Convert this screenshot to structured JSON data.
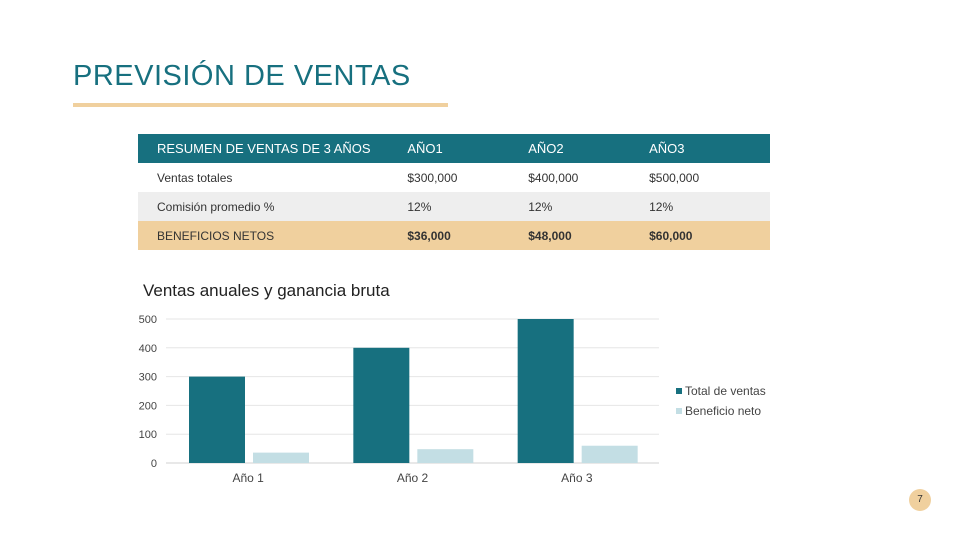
{
  "slide": {
    "title": "PREVISIÓN DE VENTAS",
    "page_number": "7",
    "colors": {
      "teal": "#17707f",
      "light_blue": "#c3dee4",
      "accent": "#f0d09e"
    }
  },
  "table": {
    "headers": [
      "RESUMEN DE VENTAS DE 3 AÑOS",
      "AÑO1",
      "AÑO2",
      "AÑO3"
    ],
    "rows": [
      [
        "Ventas totales",
        "$300,000",
        "$400,000",
        "$500,000"
      ],
      [
        "Comisión promedio %",
        "12%",
        "12%",
        "12%"
      ],
      [
        "BENEFICIOS NETOS",
        "$36,000",
        "$48,000",
        "$60,000"
      ]
    ]
  },
  "chart_data": {
    "type": "bar",
    "title": "Ventas anuales y ganancia bruta",
    "categories": [
      "Año 1",
      "Año 2",
      "Año 3"
    ],
    "series": [
      {
        "name": "Total de ventas",
        "values": [
          300,
          400,
          500
        ],
        "color": "#17707f"
      },
      {
        "name": "Beneficio neto",
        "values": [
          36,
          48,
          60
        ],
        "color": "#c3dee4"
      }
    ],
    "ylim": [
      0,
      500
    ],
    "yticks": [
      0,
      100,
      200,
      300,
      400,
      500
    ],
    "grid": true,
    "legend": "right"
  }
}
